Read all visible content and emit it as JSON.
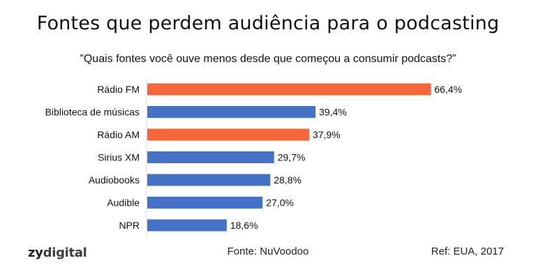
{
  "title": "Fontes que perdem audiência para o podcasting",
  "subtitle": "”Quais fontes você ouve menos desde que começou a consumir podcasts?”",
  "chart_data": {
    "type": "bar",
    "orientation": "horizontal",
    "categories": [
      "Rádio FM",
      "Biblioteca de músicas",
      "Rádio AM",
      "Sirius XM",
      "Audiobooks",
      "Audible",
      "NPR"
    ],
    "values": [
      66.4,
      39.4,
      37.9,
      29.7,
      28.8,
      27.0,
      18.6
    ],
    "value_labels": [
      "66,4%",
      "39,4%",
      "37,9%",
      "29,7%",
      "28,8%",
      "27,0%",
      "18,6%"
    ],
    "bar_colors": [
      "#f5663a",
      "#4472c4",
      "#f5663a",
      "#4472c4",
      "#4472c4",
      "#4472c4",
      "#4472c4"
    ],
    "xlim": [
      0,
      100
    ],
    "grid": false,
    "legend": "none"
  },
  "footer": {
    "brand_prefix": "zy",
    "brand_suffix": "digital",
    "source": "Fonte: NuVoodoo",
    "ref": "Ref: EUA, 2017"
  }
}
